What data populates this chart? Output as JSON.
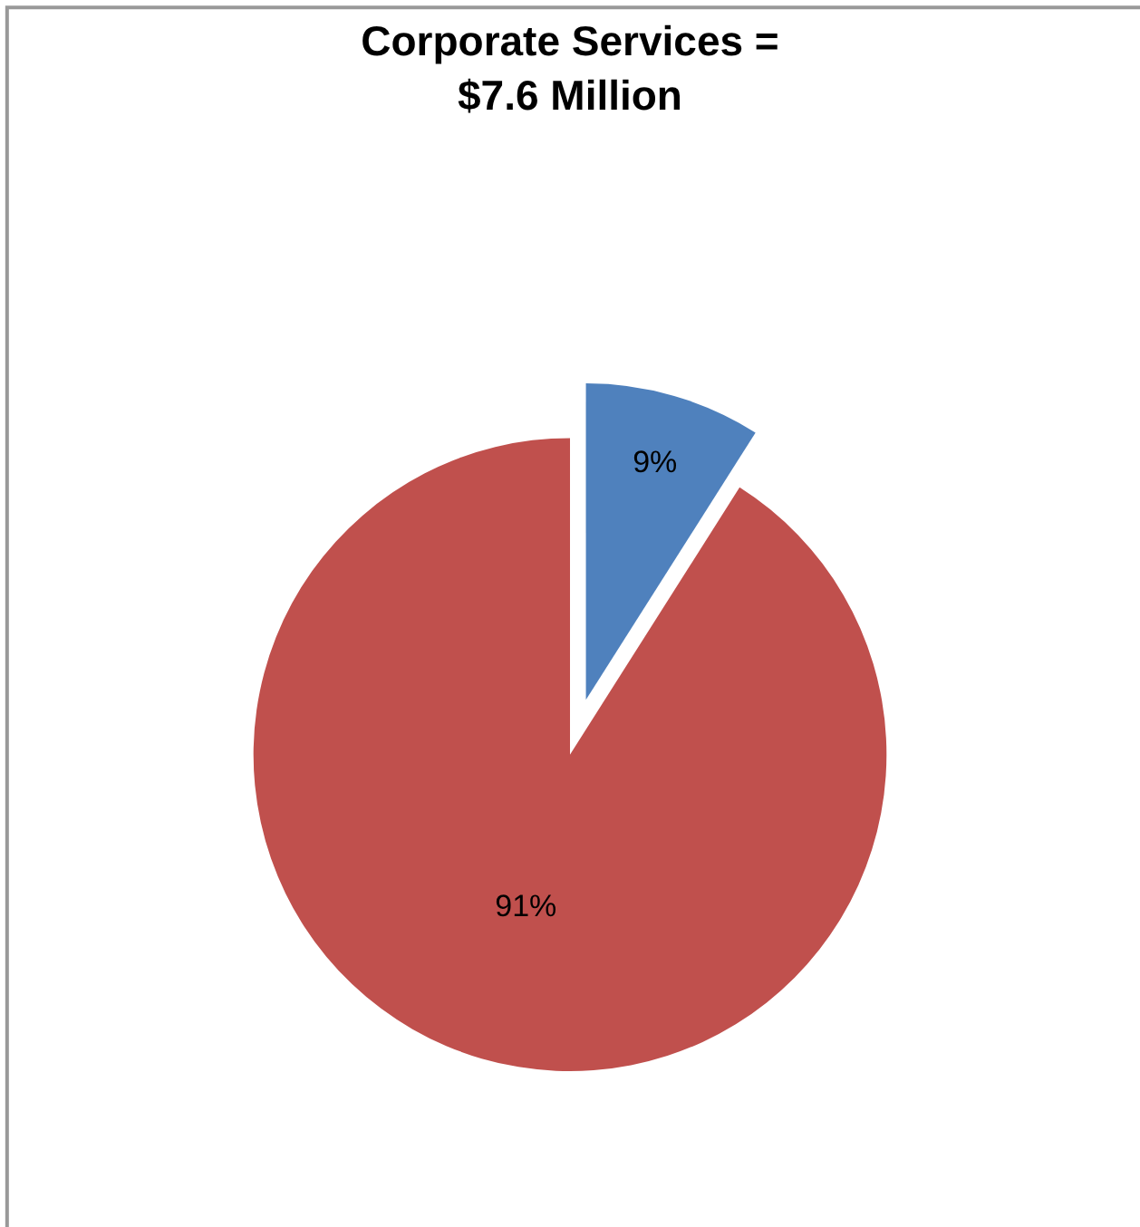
{
  "chart_data": {
    "type": "pie",
    "title": "Corporate Services =\n$7.6 Million",
    "categories": [
      null,
      null
    ],
    "values": [
      9,
      91
    ],
    "colors": [
      "#4f81bd",
      "#c0504d"
    ],
    "value_labels": [
      "9%",
      "91%"
    ],
    "legend": false
  }
}
